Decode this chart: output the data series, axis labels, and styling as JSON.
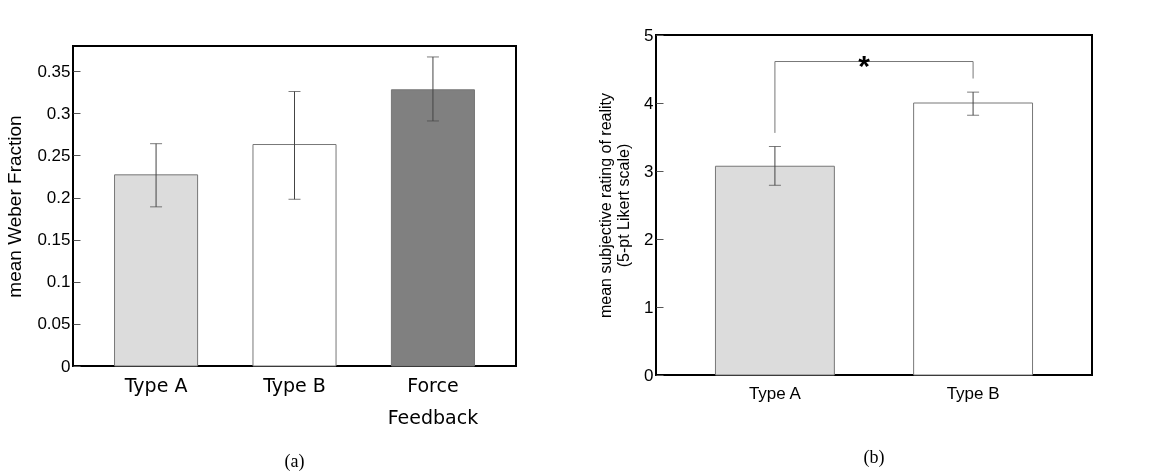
{
  "chart_data": [
    {
      "type": "bar",
      "ylabel": "mean Weber Fraction",
      "categories": [
        "Type A",
        "Type B",
        "Force Feedback"
      ],
      "values": [
        0.227,
        0.263,
        0.328
      ],
      "colors": [
        "#dcdcdc",
        "#ffffff",
        "#808080"
      ],
      "errors": [
        [
          0.189,
          0.264
        ],
        [
          0.198,
          0.326
        ],
        [
          0.291,
          0.367
        ]
      ],
      "ylim": [
        0,
        0.38
      ],
      "yticks": [
        0,
        0.05,
        0.1,
        0.15,
        0.2,
        0.25,
        0.3,
        0.35
      ],
      "grid": false,
      "annotations": [
        "(a)"
      ]
    },
    {
      "type": "bar",
      "ylabel": "mean subjective rating of reality\n(5-pt Likert scale)",
      "categories": [
        "Type A",
        "Type B"
      ],
      "values": [
        3.07,
        4.0
      ],
      "colors": [
        "#dcdcdc",
        "#ffffff"
      ],
      "errors": [
        [
          2.79,
          3.36
        ],
        [
          3.82,
          4.16
        ]
      ],
      "ylim": [
        0,
        5
      ],
      "yticks": [
        0,
        1,
        2,
        3,
        4,
        5
      ],
      "grid": false,
      "annotations": [
        "*",
        "(b)"
      ]
    }
  ]
}
